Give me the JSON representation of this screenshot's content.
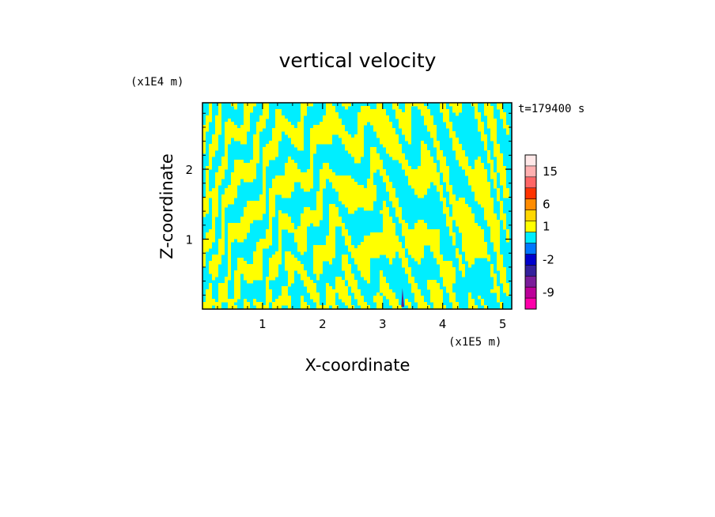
{
  "chart_data": {
    "type": "heatmap",
    "title": "vertical velocity",
    "xlabel": "X-coordinate",
    "ylabel": "Z-coordinate",
    "x_unit": "(x1E5 m)",
    "y_unit": "(x1E4 m)",
    "time_label": "t=179400 s",
    "xlim": [
      0,
      5.15
    ],
    "ylim": [
      0,
      2.95
    ],
    "x_ticks": [
      "1",
      "2",
      "3",
      "4",
      "5"
    ],
    "y_ticks": [
      "1",
      "2"
    ],
    "field_colors": {
      "positive": "#ffff00",
      "negative": "#00eeff",
      "strong_negative": "#5a1f8c"
    },
    "colorbar": {
      "levels": [
        {
          "color": "#ff00aa"
        },
        {
          "color": "#bb0099"
        },
        {
          "color": "#7a1c9a"
        },
        {
          "color": "#33209c"
        },
        {
          "color": "#0000cc"
        },
        {
          "color": "#0077ff"
        },
        {
          "color": "#00eeff"
        },
        {
          "color": "#ffff00"
        },
        {
          "color": "#ffd700"
        },
        {
          "color": "#ff8c00"
        },
        {
          "color": "#ff3300"
        },
        {
          "color": "#ff6666"
        },
        {
          "color": "#ffb0b0"
        },
        {
          "color": "#ffe8e8"
        }
      ],
      "labels": [
        "-9",
        "-2",
        "1",
        "6",
        "15"
      ]
    }
  }
}
